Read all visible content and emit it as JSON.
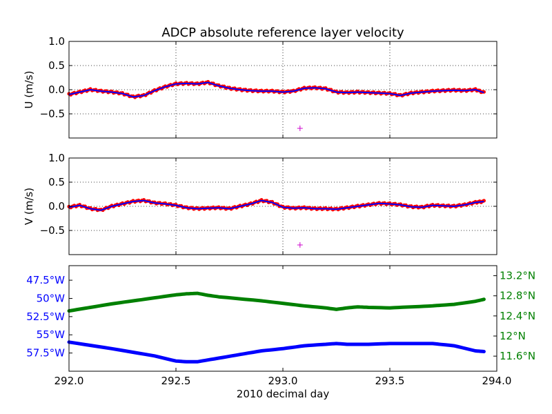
{
  "figure": {
    "title": "ADCP absolute reference layer velocity",
    "xlabel": "2010 decimal day",
    "x_tick_labels": [
      "292.0",
      "292.5",
      "293.0",
      "293.5",
      "294.0"
    ]
  },
  "colors": {
    "points": "#ff0000",
    "smooth": "#0000ff",
    "marker": "#cc00cc",
    "lon": "#0000ff",
    "lat": "#008000"
  },
  "chart_data": [
    {
      "type": "scatter",
      "panel": "u",
      "ylabel": "U (m/s)",
      "xlim": [
        292.0,
        294.0
      ],
      "ylim": [
        -1.0,
        1.0
      ],
      "y_tick_labels": [
        "1.0",
        "0.5",
        "0.0",
        "−0.5"
      ],
      "y_ticks": [
        1.0,
        0.5,
        0.0,
        -0.5
      ],
      "x_ticks": [
        292.0,
        292.5,
        293.0,
        293.5,
        294.0
      ],
      "grid": true,
      "series": [
        {
          "style": "points+line",
          "x": [
            292.0,
            292.05,
            292.1,
            292.15,
            292.2,
            292.25,
            292.3,
            292.35,
            292.4,
            292.45,
            292.5,
            292.55,
            292.6,
            292.65,
            292.7,
            292.75,
            292.8,
            292.85,
            292.9,
            292.95,
            293.0,
            293.05,
            293.1,
            293.15,
            293.2,
            293.25,
            293.3,
            293.35,
            293.4,
            293.45,
            293.5,
            293.55,
            293.6,
            293.65,
            293.7,
            293.75,
            293.8,
            293.85,
            293.9,
            293.94
          ],
          "y": [
            -0.1,
            -0.05,
            0.0,
            -0.03,
            -0.05,
            -0.08,
            -0.15,
            -0.12,
            -0.02,
            0.06,
            0.12,
            0.13,
            0.12,
            0.15,
            0.08,
            0.03,
            0.0,
            -0.02,
            -0.03,
            -0.03,
            -0.05,
            -0.03,
            0.03,
            0.04,
            0.02,
            -0.05,
            -0.06,
            -0.05,
            -0.06,
            -0.07,
            -0.08,
            -0.12,
            -0.07,
            -0.05,
            -0.03,
            -0.02,
            -0.01,
            -0.02,
            0.0,
            -0.06
          ]
        }
      ],
      "marker": {
        "x": 293.08,
        "y": -0.8,
        "symbol": "+"
      }
    },
    {
      "type": "scatter",
      "panel": "v",
      "ylabel": "V (m/s)",
      "xlim": [
        292.0,
        294.0
      ],
      "ylim": [
        -1.0,
        1.0
      ],
      "y_tick_labels": [
        "1.0",
        "0.5",
        "0.0",
        "−0.5"
      ],
      "y_ticks": [
        1.0,
        0.5,
        0.0,
        -0.5
      ],
      "x_ticks": [
        292.0,
        292.5,
        293.0,
        293.5,
        294.0
      ],
      "grid": true,
      "series": [
        {
          "style": "points+line",
          "x": [
            292.0,
            292.05,
            292.1,
            292.15,
            292.2,
            292.25,
            292.3,
            292.35,
            292.4,
            292.45,
            292.5,
            292.55,
            292.6,
            292.65,
            292.7,
            292.75,
            292.8,
            292.85,
            292.9,
            292.95,
            293.0,
            293.05,
            293.1,
            293.15,
            293.2,
            293.25,
            293.3,
            293.35,
            293.4,
            293.45,
            293.5,
            293.55,
            293.6,
            293.65,
            293.7,
            293.75,
            293.8,
            293.85,
            293.9,
            293.94
          ],
          "y": [
            -0.02,
            0.02,
            -0.05,
            -0.08,
            0.0,
            0.05,
            0.1,
            0.12,
            0.07,
            0.05,
            0.02,
            -0.03,
            -0.05,
            -0.04,
            -0.03,
            -0.05,
            0.0,
            0.05,
            0.12,
            0.08,
            -0.02,
            -0.04,
            -0.03,
            -0.05,
            -0.05,
            -0.06,
            -0.03,
            0.0,
            0.03,
            0.06,
            0.05,
            0.03,
            -0.01,
            -0.02,
            0.02,
            0.01,
            0.0,
            0.03,
            0.08,
            0.1
          ]
        }
      ],
      "marker": {
        "x": 293.08,
        "y": -0.8,
        "symbol": "+"
      }
    },
    {
      "type": "line",
      "panel": "position",
      "xlim": [
        292.0,
        294.0
      ],
      "x_ticks": [
        292.0,
        292.5,
        293.0,
        293.5,
        294.0
      ],
      "grid": false,
      "left_axis": {
        "quantity": "longitude (degrees west)",
        "ylim": [
          -60.0,
          -45.5
        ],
        "y_ticks": [
          -47.5,
          -50.0,
          -52.5,
          -55.0,
          -57.5
        ],
        "y_tick_labels": [
          "47.5°W",
          "50°W",
          "52.5°W",
          "55°W",
          "57.5°W"
        ]
      },
      "right_axis": {
        "quantity": "latitude (degrees north)",
        "ylim": [
          11.3,
          13.4
        ],
        "y_ticks": [
          13.2,
          12.8,
          12.4,
          12.0,
          11.6
        ],
        "y_tick_labels": [
          "13.2°N",
          "12.8°N",
          "12.4°N",
          "12°N",
          "11.6°N"
        ]
      },
      "series": [
        {
          "axis": "left",
          "x": [
            292.0,
            292.2,
            292.4,
            292.5,
            292.55,
            292.6,
            292.7,
            292.8,
            292.9,
            293.0,
            293.1,
            293.2,
            293.25,
            293.3,
            293.4,
            293.5,
            293.6,
            293.7,
            293.8,
            293.9,
            293.94
          ],
          "y": [
            -56.0,
            -56.9,
            -57.9,
            -58.6,
            -58.7,
            -58.7,
            -58.2,
            -57.7,
            -57.2,
            -56.9,
            -56.5,
            -56.3,
            -56.2,
            -56.3,
            -56.3,
            -56.2,
            -56.2,
            -56.2,
            -56.5,
            -57.2,
            -57.3
          ]
        },
        {
          "axis": "right",
          "x": [
            292.0,
            292.1,
            292.2,
            292.3,
            292.4,
            292.5,
            292.55,
            292.6,
            292.65,
            292.7,
            292.8,
            292.9,
            293.0,
            293.1,
            293.2,
            293.25,
            293.3,
            293.35,
            293.4,
            293.5,
            293.6,
            293.7,
            293.8,
            293.9,
            293.94
          ],
          "y": [
            12.5,
            12.57,
            12.64,
            12.7,
            12.76,
            12.82,
            12.84,
            12.85,
            12.81,
            12.78,
            12.74,
            12.7,
            12.65,
            12.6,
            12.56,
            12.53,
            12.56,
            12.58,
            12.57,
            12.56,
            12.58,
            12.6,
            12.63,
            12.69,
            12.73
          ]
        }
      ]
    }
  ]
}
